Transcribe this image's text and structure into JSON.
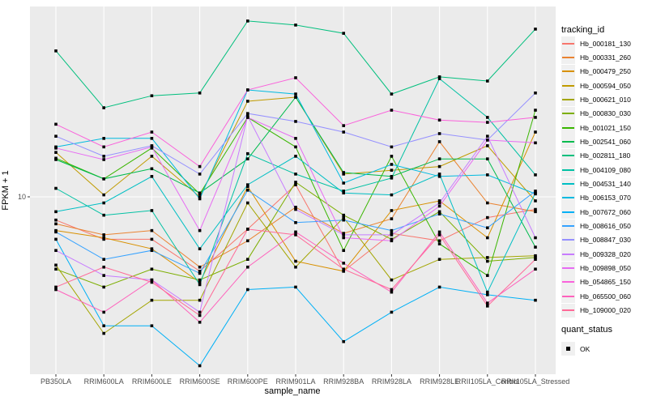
{
  "figure": {
    "panel_background": "#EBEBEB",
    "gridline_color": "#FFFFFF",
    "tick_mark_color": "#333333",
    "tick_label_color": "#4D4D4D",
    "point_color": "#000000"
  },
  "axes": {
    "x_title": "sample_name",
    "y_title": "FPKM + 1"
  },
  "legend": {
    "tracking_title": "tracking_id",
    "quant_title": "quant_status",
    "quant_items": [
      {
        "label": "OK",
        "marker": "filled-black-square"
      }
    ]
  },
  "chart_data": {
    "type": "line",
    "title": "",
    "xlabel": "sample_name",
    "ylabel": "FPKM + 1",
    "y_scale": "log10",
    "y_ticks": [
      10
    ],
    "y_tick_labels": [
      "10"
    ],
    "ylim": [
      1.6,
      70
    ],
    "grid": "gray panel with white gridlines (ggplot style)",
    "legend_position": "right",
    "point_marker": "filled-black-square (quant_status OK)",
    "categories": [
      "PB350LA",
      "RRIM600LA",
      "RRIM600LE",
      "RRIM600SE",
      "RRIM600PE",
      "RRIM901LA",
      "RRIM928BA",
      "RRIM928LA",
      "RRIM928LE",
      "RRII105LA_Control",
      "RRII105LA_Stressed"
    ],
    "series": [
      {
        "name": "Hb_000181_130",
        "color": "#F8766D",
        "values": [
          7.9,
          6.5,
          6.5,
          4.7,
          7.2,
          11.3,
          4.7,
          6.9,
          6.4,
          8.1,
          8.8
        ]
      },
      {
        "name": "Hb_000331_260",
        "color": "#EA8331",
        "values": [
          7.6,
          6.8,
          7.1,
          4.9,
          6.4,
          9.0,
          6.9,
          8.0,
          17.5,
          9.4,
          8.6
        ]
      },
      {
        "name": "Hb_000479_250",
        "color": "#D89000",
        "values": [
          7.1,
          6.6,
          5.9,
          4.2,
          11.1,
          5.2,
          4.7,
          8.7,
          9.6,
          6.6,
          19.3
        ]
      },
      {
        "name": "Hb_000594_050",
        "color": "#C09B00",
        "values": [
          15.7,
          10.2,
          15.1,
          10.0,
          26.4,
          27.5,
          12.6,
          13.1,
          13.6,
          16.8,
          9.6
        ]
      },
      {
        "name": "Hb_000621_010",
        "color": "#A3A500",
        "values": [
          5.0,
          2.5,
          3.5,
          3.5,
          9.4,
          4.9,
          8.1,
          4.3,
          5.3,
          5.4,
          5.5
        ]
      },
      {
        "name": "Hb_000830_030",
        "color": "#7CAE00",
        "values": [
          4.8,
          4.0,
          4.8,
          4.3,
          5.3,
          11.6,
          8.3,
          6.5,
          8.6,
          5.2,
          5.4
        ]
      },
      {
        "name": "Hb_001021_150",
        "color": "#39B600",
        "values": [
          14.8,
          12.0,
          16.4,
          10.3,
          22.4,
          16.6,
          5.8,
          15.1,
          6.2,
          4.5,
          24.1
        ]
      },
      {
        "name": "Hb_002541_060",
        "color": "#00BB4E",
        "values": [
          14.6,
          12.0,
          13.3,
          10.4,
          14.7,
          27.5,
          12.8,
          12.3,
          14.7,
          14.7,
          6.0
        ]
      },
      {
        "name": "Hb_002811_180",
        "color": "#00BF7D",
        "values": [
          44.0,
          24.7,
          27.9,
          28.7,
          59.6,
          57.2,
          52.6,
          28.4,
          33.8,
          32.4,
          54.9
        ]
      },
      {
        "name": "Hb_004109_080",
        "color": "#00C1A3",
        "values": [
          10.9,
          8.3,
          8.7,
          4.1,
          15.5,
          12.6,
          10.6,
          12.1,
          33.2,
          22.4,
          12.5
        ]
      },
      {
        "name": "Hb_004531_140",
        "color": "#00BFC4",
        "values": [
          8.6,
          9.4,
          12.3,
          5.9,
          11.3,
          15.1,
          10.4,
          10.2,
          12.6,
          3.8,
          10.4
        ]
      },
      {
        "name": "Hb_006153_070",
        "color": "#00BAE0",
        "values": [
          16.6,
          18.1,
          18.1,
          9.8,
          29.6,
          28.4,
          11.5,
          13.9,
          12.3,
          12.5,
          10.3
        ]
      },
      {
        "name": "Hb_007672_060",
        "color": "#00B0F6",
        "values": [
          6.5,
          2.7,
          2.7,
          1.8,
          3.9,
          4.0,
          2.3,
          3.1,
          4.0,
          3.7,
          3.5
        ]
      },
      {
        "name": "Hb_008616_050",
        "color": "#35A2FF",
        "values": [
          7.0,
          5.3,
          5.8,
          4.6,
          10.7,
          7.7,
          7.9,
          7.1,
          8.4,
          7.3,
          10.6
        ]
      },
      {
        "name": "Hb_008847_030",
        "color": "#9590FF",
        "values": [
          18.5,
          15.1,
          16.8,
          12.6,
          23.3,
          21.5,
          19.3,
          16.6,
          19.0,
          17.8,
          28.7
        ]
      },
      {
        "name": "Hb_009328_020",
        "color": "#C77CFF",
        "values": [
          5.8,
          4.5,
          4.3,
          3.1,
          22.7,
          8.8,
          6.8,
          6.8,
          9.4,
          18.5,
          6.6
        ]
      },
      {
        "name": "Hb_009898_050",
        "color": "#E76BF3",
        "values": [
          16.4,
          14.6,
          16.6,
          7.1,
          22.4,
          18.1,
          6.6,
          6.4,
          9.1,
          17.8,
          17.3
        ]
      },
      {
        "name": "Hb_054865_150",
        "color": "#FA62DB",
        "values": [
          20.9,
          16.6,
          19.3,
          13.6,
          29.6,
          33.5,
          20.6,
          24.1,
          21.8,
          21.3,
          22.4
        ]
      },
      {
        "name": "Hb_065500_060",
        "color": "#FF62BC",
        "values": [
          3.9,
          3.1,
          4.3,
          2.8,
          4.9,
          7.0,
          5.1,
          3.8,
          7.0,
          3.4,
          4.8
        ]
      },
      {
        "name": "Hb_109000_020",
        "color": "#FF6A98",
        "values": [
          4.0,
          4.9,
          4.2,
          3.0,
          7.2,
          6.8,
          4.8,
          3.9,
          6.8,
          3.3,
          5.3
        ]
      }
    ]
  }
}
